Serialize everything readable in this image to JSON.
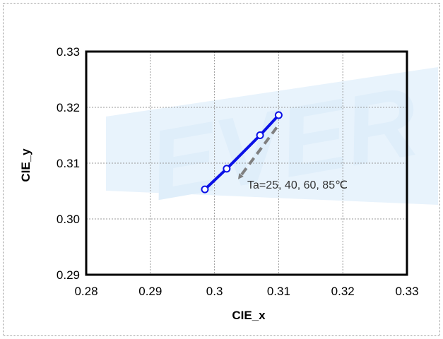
{
  "chart_data": {
    "type": "line",
    "xlabel": "CIE_x",
    "ylabel": "CIE_y",
    "xlim": [
      0.28,
      0.33
    ],
    "ylim": [
      0.29,
      0.33
    ],
    "xticks": [
      "0.28",
      "0.29",
      "0.3",
      "0.31",
      "0.32",
      "0.33"
    ],
    "yticks": [
      "0.33",
      "0.32",
      "0.31",
      "0.30",
      "0.29"
    ],
    "grid": true,
    "series": [
      {
        "x": [
          0.2985,
          0.3019,
          0.3071,
          0.31
        ],
        "y": [
          0.3053,
          0.309,
          0.315,
          0.3186
        ],
        "color": "#0a10e6"
      }
    ],
    "annotation": {
      "text": "Ta=25, 40, 60, 85℃",
      "arrow_from": [
        0.3097,
        0.3164
      ],
      "arrow_to": [
        0.3038,
        0.3073
      ],
      "arrow_color": "#7f7f7f"
    },
    "watermark_text": "EVER",
    "watermark_color": "#dfeefa"
  }
}
